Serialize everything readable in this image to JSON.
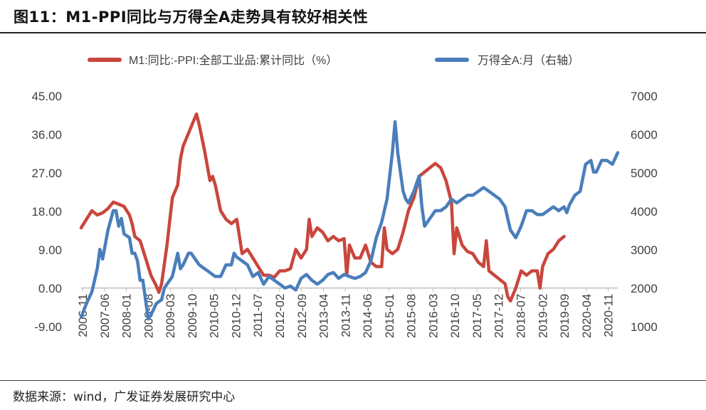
{
  "header": {
    "title": "图11：M1-PPI同比与万得全A走势具有较好相关性"
  },
  "footer": {
    "source": "数据来源：wind，广发证券发展研究中心"
  },
  "colors": {
    "m1_ppi": "#C9463D",
    "wind_a": "#4A7EBB",
    "axis": "#BFBFBF",
    "text": "#404040"
  },
  "chart_data": {
    "type": "line",
    "title": "M1-PPI同比与万得全A走势具有较好相关性",
    "legend_position": "top",
    "grid": false,
    "left_axis": {
      "ylim": [
        -9.0,
        45.0
      ],
      "ticks": [
        "45.00",
        "36.00",
        "27.00",
        "18.00",
        "9.00",
        "0.00",
        "-9.00"
      ]
    },
    "right_axis": {
      "ylim": [
        1000,
        7000
      ],
      "ticks": [
        "7000",
        "6000",
        "5000",
        "4000",
        "3000",
        "2000",
        "1000"
      ]
    },
    "x_tick_labels": [
      "2006-11",
      "2007-06",
      "2008-01",
      "2008-08",
      "2009-03",
      "2009-10",
      "2010-05",
      "2010-12",
      "2011-07",
      "2012-02",
      "2012-09",
      "2013-04",
      "2013-11",
      "2014-06",
      "2015-01",
      "2015-08",
      "2016-03",
      "2016-10",
      "2017-05",
      "2017-12",
      "2018-07",
      "2019-02",
      "2019-09",
      "2020-04",
      "2020-11"
    ],
    "x_range_months": [
      0,
      169
    ],
    "series": [
      {
        "name": "M1:同比:-PPI:全部工业品:累计同比（%）",
        "axis": "left",
        "points": [
          [
            0,
            14
          ],
          [
            2,
            16
          ],
          [
            4,
            18
          ],
          [
            6,
            17
          ],
          [
            8,
            17.5
          ],
          [
            10,
            18.5
          ],
          [
            12,
            20
          ],
          [
            14,
            19.5
          ],
          [
            16,
            19
          ],
          [
            18,
            17
          ],
          [
            19,
            15
          ],
          [
            20,
            12
          ],
          [
            22,
            11
          ],
          [
            24,
            7
          ],
          [
            26,
            3
          ],
          [
            28,
            0.5
          ],
          [
            29,
            -1
          ],
          [
            30,
            1
          ],
          [
            32,
            10
          ],
          [
            34,
            21
          ],
          [
            36,
            24
          ],
          [
            37,
            30
          ],
          [
            38,
            33
          ],
          [
            40,
            36
          ],
          [
            42,
            39
          ],
          [
            43,
            40.5
          ],
          [
            44,
            38
          ],
          [
            46,
            32
          ],
          [
            48,
            25
          ],
          [
            49,
            26
          ],
          [
            50,
            24
          ],
          [
            52,
            18
          ],
          [
            54,
            16
          ],
          [
            56,
            15
          ],
          [
            58,
            16
          ],
          [
            60,
            8
          ],
          [
            62,
            9
          ],
          [
            64,
            7
          ],
          [
            66,
            5
          ],
          [
            68,
            3
          ],
          [
            70,
            3
          ],
          [
            72,
            2.5
          ],
          [
            74,
            4
          ],
          [
            76,
            4
          ],
          [
            78,
            4.5
          ],
          [
            80,
            9
          ],
          [
            82,
            7
          ],
          [
            84,
            9
          ],
          [
            85,
            16
          ],
          [
            86,
            12
          ],
          [
            88,
            14
          ],
          [
            90,
            13
          ],
          [
            92,
            11
          ],
          [
            94,
            12
          ],
          [
            96,
            11
          ],
          [
            98,
            11.5
          ],
          [
            99,
            3
          ],
          [
            100,
            10
          ],
          [
            102,
            7
          ],
          [
            104,
            7
          ],
          [
            106,
            10
          ],
          [
            108,
            6
          ],
          [
            110,
            5
          ],
          [
            112,
            5
          ],
          [
            113,
            14
          ],
          [
            114,
            9
          ],
          [
            116,
            8
          ],
          [
            118,
            9
          ],
          [
            120,
            13
          ],
          [
            122,
            18
          ],
          [
            124,
            21
          ],
          [
            126,
            26
          ],
          [
            128,
            27
          ],
          [
            130,
            28
          ],
          [
            132,
            29
          ],
          [
            134,
            28
          ],
          [
            136,
            25
          ],
          [
            138,
            20
          ],
          [
            139,
            8
          ],
          [
            140,
            14
          ],
          [
            142,
            10
          ],
          [
            144,
            8.5
          ],
          [
            146,
            8
          ],
          [
            148,
            6
          ],
          [
            150,
            5
          ],
          [
            151,
            11
          ],
          [
            152,
            4
          ],
          [
            154,
            3
          ],
          [
            156,
            2
          ],
          [
            158,
            1
          ],
          [
            159,
            -2
          ],
          [
            160,
            -3
          ],
          [
            162,
            0
          ],
          [
            164,
            4
          ],
          [
            166,
            3
          ],
          [
            168,
            4
          ],
          [
            170,
            4
          ],
          [
            171,
            0
          ],
          [
            172,
            5
          ],
          [
            174,
            8
          ],
          [
            176,
            9
          ],
          [
            178,
            11
          ],
          [
            180,
            12
          ]
        ]
      },
      {
        "name": "万得全A:月（右轴）",
        "axis": "right",
        "points": [
          [
            0,
            1250
          ],
          [
            2,
            1600
          ],
          [
            4,
            1900
          ],
          [
            6,
            2500
          ],
          [
            7,
            3000
          ],
          [
            8,
            2750
          ],
          [
            10,
            3500
          ],
          [
            12,
            4000
          ],
          [
            13,
            4000
          ],
          [
            14,
            3600
          ],
          [
            15,
            3800
          ],
          [
            16,
            3400
          ],
          [
            18,
            3300
          ],
          [
            19,
            2900
          ],
          [
            20,
            2900
          ],
          [
            21,
            2700
          ],
          [
            22,
            2200
          ],
          [
            23,
            2200
          ],
          [
            24,
            1700
          ],
          [
            25,
            1200
          ],
          [
            26,
            1300
          ],
          [
            28,
            1600
          ],
          [
            30,
            1700
          ],
          [
            31,
            2000
          ],
          [
            32,
            2100
          ],
          [
            34,
            2300
          ],
          [
            36,
            2900
          ],
          [
            37,
            2500
          ],
          [
            38,
            2600
          ],
          [
            40,
            2900
          ],
          [
            41,
            2900
          ],
          [
            42,
            2800
          ],
          [
            44,
            2600
          ],
          [
            46,
            2500
          ],
          [
            48,
            2400
          ],
          [
            50,
            2300
          ],
          [
            52,
            2300
          ],
          [
            54,
            2600
          ],
          [
            56,
            2600
          ],
          [
            57,
            2900
          ],
          [
            58,
            2800
          ],
          [
            60,
            2700
          ],
          [
            62,
            2600
          ],
          [
            64,
            2300
          ],
          [
            66,
            2400
          ],
          [
            68,
            2100
          ],
          [
            70,
            2300
          ],
          [
            72,
            2200
          ],
          [
            74,
            2100
          ],
          [
            76,
            2000
          ],
          [
            78,
            2050
          ],
          [
            80,
            1950
          ],
          [
            82,
            2250
          ],
          [
            84,
            2350
          ],
          [
            86,
            2200
          ],
          [
            88,
            2100
          ],
          [
            90,
            2200
          ],
          [
            92,
            2350
          ],
          [
            94,
            2400
          ],
          [
            96,
            2250
          ],
          [
            98,
            2350
          ],
          [
            100,
            2300
          ],
          [
            102,
            2250
          ],
          [
            104,
            2300
          ],
          [
            106,
            2400
          ],
          [
            108,
            2700
          ],
          [
            110,
            3300
          ],
          [
            112,
            3700
          ],
          [
            114,
            4300
          ],
          [
            116,
            5500
          ],
          [
            117,
            6300
          ],
          [
            118,
            5500
          ],
          [
            120,
            4500
          ],
          [
            121,
            4300
          ],
          [
            122,
            4200
          ],
          [
            124,
            4500
          ],
          [
            126,
            4900
          ],
          [
            127,
            4100
          ],
          [
            128,
            3600
          ],
          [
            130,
            3800
          ],
          [
            132,
            4000
          ],
          [
            134,
            4000
          ],
          [
            136,
            4100
          ],
          [
            138,
            4300
          ],
          [
            140,
            4200
          ],
          [
            142,
            4300
          ],
          [
            144,
            4400
          ],
          [
            146,
            4400
          ],
          [
            148,
            4500
          ],
          [
            150,
            4600
          ],
          [
            152,
            4500
          ],
          [
            154,
            4400
          ],
          [
            156,
            4300
          ],
          [
            158,
            4100
          ],
          [
            159,
            3800
          ],
          [
            160,
            3500
          ],
          [
            162,
            3300
          ],
          [
            164,
            3600
          ],
          [
            166,
            4000
          ],
          [
            168,
            4000
          ],
          [
            170,
            3900
          ],
          [
            172,
            3900
          ],
          [
            174,
            4000
          ],
          [
            176,
            4100
          ],
          [
            178,
            4000
          ],
          [
            180,
            4100
          ],
          [
            181,
            3950
          ],
          [
            182,
            4150
          ],
          [
            184,
            4400
          ],
          [
            186,
            4500
          ],
          [
            188,
            5200
          ],
          [
            190,
            5300
          ],
          [
            191,
            5000
          ],
          [
            192,
            5000
          ],
          [
            194,
            5300
          ],
          [
            196,
            5300
          ],
          [
            198,
            5200
          ],
          [
            200,
            5500
          ]
        ]
      }
    ]
  }
}
